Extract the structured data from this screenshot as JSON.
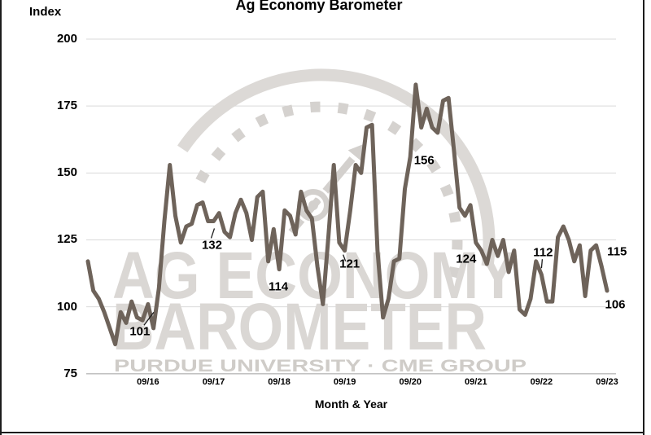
{
  "chart": {
    "title": "Ag Economy Barometer",
    "y_axis_title": "Index",
    "x_axis_title": "Month & Year"
  },
  "watermark": {
    "line1": "AG ECONOMY",
    "line2": "BAROMETER",
    "line3": "PURDUE UNIVERSITY   ·   CME GROUP"
  },
  "colors": {
    "line": "#6e635a",
    "grid": "#d9d9d9",
    "axis": "#b9b9b9",
    "watermark_text": "#dad7d4",
    "watermark_gauge": "#d5d2cf",
    "watermark_footer": "#cfccc8",
    "label_text": "#000000",
    "frame": "#1c1c1c"
  },
  "chart_data": {
    "type": "line",
    "title": "Ag Economy Barometer",
    "xlabel": "Month & Year",
    "ylabel": "Index",
    "ylim": [
      75,
      200
    ],
    "yticks": [
      200,
      175,
      150,
      125,
      100,
      75
    ],
    "xticks": [
      "09/16",
      "09/17",
      "09/18",
      "09/19",
      "09/20",
      "09/21",
      "09/22",
      "09/23"
    ],
    "grid": "horizontal",
    "x": [
      "10/15",
      "11/15",
      "12/15",
      "01/16",
      "02/16",
      "03/16",
      "04/16",
      "05/16",
      "06/16",
      "07/16",
      "08/16",
      "09/16",
      "10/16",
      "11/16",
      "12/16",
      "01/17",
      "02/17",
      "03/17",
      "04/17",
      "05/17",
      "06/17",
      "07/17",
      "08/17",
      "09/17",
      "10/17",
      "11/17",
      "12/17",
      "01/18",
      "02/18",
      "03/18",
      "04/18",
      "05/18",
      "06/18",
      "07/18",
      "08/18",
      "09/18",
      "10/18",
      "11/18",
      "12/18",
      "01/19",
      "02/19",
      "03/19",
      "04/19",
      "05/19",
      "06/19",
      "07/19",
      "08/19",
      "09/19",
      "10/19",
      "11/19",
      "12/19",
      "01/20",
      "02/20",
      "03/20",
      "04/20",
      "05/20",
      "06/20",
      "07/20",
      "08/20",
      "09/20",
      "10/20",
      "11/20",
      "12/20",
      "01/21",
      "02/21",
      "03/21",
      "04/21",
      "05/21",
      "06/21",
      "07/21",
      "08/21",
      "09/21",
      "10/21",
      "11/21",
      "12/21",
      "01/22",
      "02/22",
      "03/22",
      "04/22",
      "05/22",
      "06/22",
      "07/22",
      "08/22",
      "09/22",
      "10/22",
      "11/22",
      "12/22",
      "01/23",
      "02/23",
      "03/23",
      "04/23",
      "05/23",
      "06/23",
      "07/23",
      "08/23",
      "09/23"
    ],
    "values": [
      117,
      106,
      103,
      98,
      92,
      86,
      98,
      94,
      102,
      96,
      95,
      101,
      92,
      107,
      132,
      153,
      134,
      124,
      130,
      131,
      138,
      139,
      132,
      132,
      135,
      128,
      126,
      135,
      140,
      135,
      125,
      141,
      143,
      117,
      129,
      114,
      136,
      134,
      127,
      143,
      136,
      133,
      115,
      101,
      126,
      153,
      124,
      121,
      136,
      153,
      150,
      167,
      168,
      121,
      96,
      103,
      117,
      118,
      144,
      156,
      183,
      167,
      174,
      167,
      165,
      177,
      178,
      158,
      137,
      134,
      138,
      124,
      121,
      116,
      125,
      119,
      125,
      113,
      121,
      99,
      97,
      103,
      117,
      112,
      102,
      102,
      126,
      130,
      125,
      117,
      123,
      104,
      121,
      123,
      115,
      106
    ],
    "annotations": [
      {
        "x": "09/16",
        "label": "101"
      },
      {
        "x": "09/17",
        "label": "132"
      },
      {
        "x": "09/18",
        "label": "114"
      },
      {
        "x": "09/19",
        "label": "121"
      },
      {
        "x": "09/20",
        "label": "156"
      },
      {
        "x": "09/21",
        "label": "124"
      },
      {
        "x": "09/22",
        "label": "112"
      },
      {
        "x": "08/23",
        "label": "115"
      },
      {
        "x": "09/23",
        "label": "106"
      }
    ]
  }
}
